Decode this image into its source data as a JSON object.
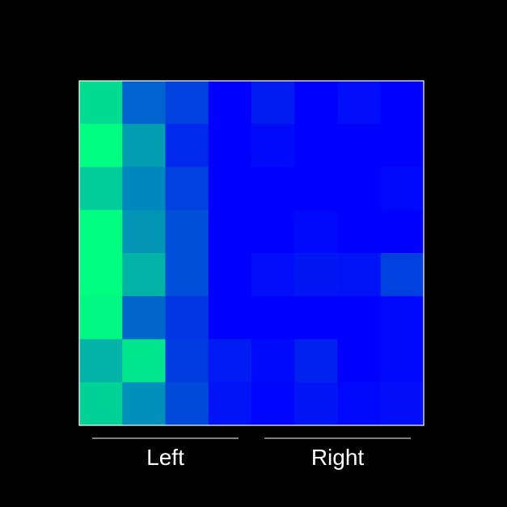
{
  "chart_data": {
    "type": "heatmap",
    "title": "",
    "xlabel": "",
    "ylabel": "",
    "rows": 8,
    "cols": 8,
    "grid": false,
    "colormap": "winter",
    "value_range": [
      0,
      1
    ],
    "column_groups": [
      {
        "label": "Left",
        "columns": [
          0,
          1,
          2,
          3
        ]
      },
      {
        "label": "Right",
        "columns": [
          4,
          5,
          6,
          7
        ]
      }
    ],
    "values": [
      [
        0.86,
        0.39,
        0.25,
        0.0,
        0.11,
        0.0,
        0.05,
        0.0
      ],
      [
        1.0,
        0.62,
        0.16,
        0.0,
        0.04,
        0.0,
        0.0,
        0.0
      ],
      [
        0.8,
        0.53,
        0.25,
        0.0,
        0.0,
        0.0,
        0.0,
        0.03
      ],
      [
        1.0,
        0.58,
        0.31,
        0.0,
        0.0,
        0.03,
        0.0,
        0.0
      ],
      [
        1.0,
        0.7,
        0.31,
        0.0,
        0.05,
        0.09,
        0.07,
        0.25
      ],
      [
        0.97,
        0.4,
        0.21,
        0.0,
        0.0,
        0.0,
        0.0,
        0.03
      ],
      [
        0.7,
        0.9,
        0.24,
        0.1,
        0.04,
        0.13,
        0.0,
        0.03
      ],
      [
        0.82,
        0.56,
        0.29,
        0.07,
        0.02,
        0.08,
        0.03,
        0.06
      ]
    ]
  }
}
